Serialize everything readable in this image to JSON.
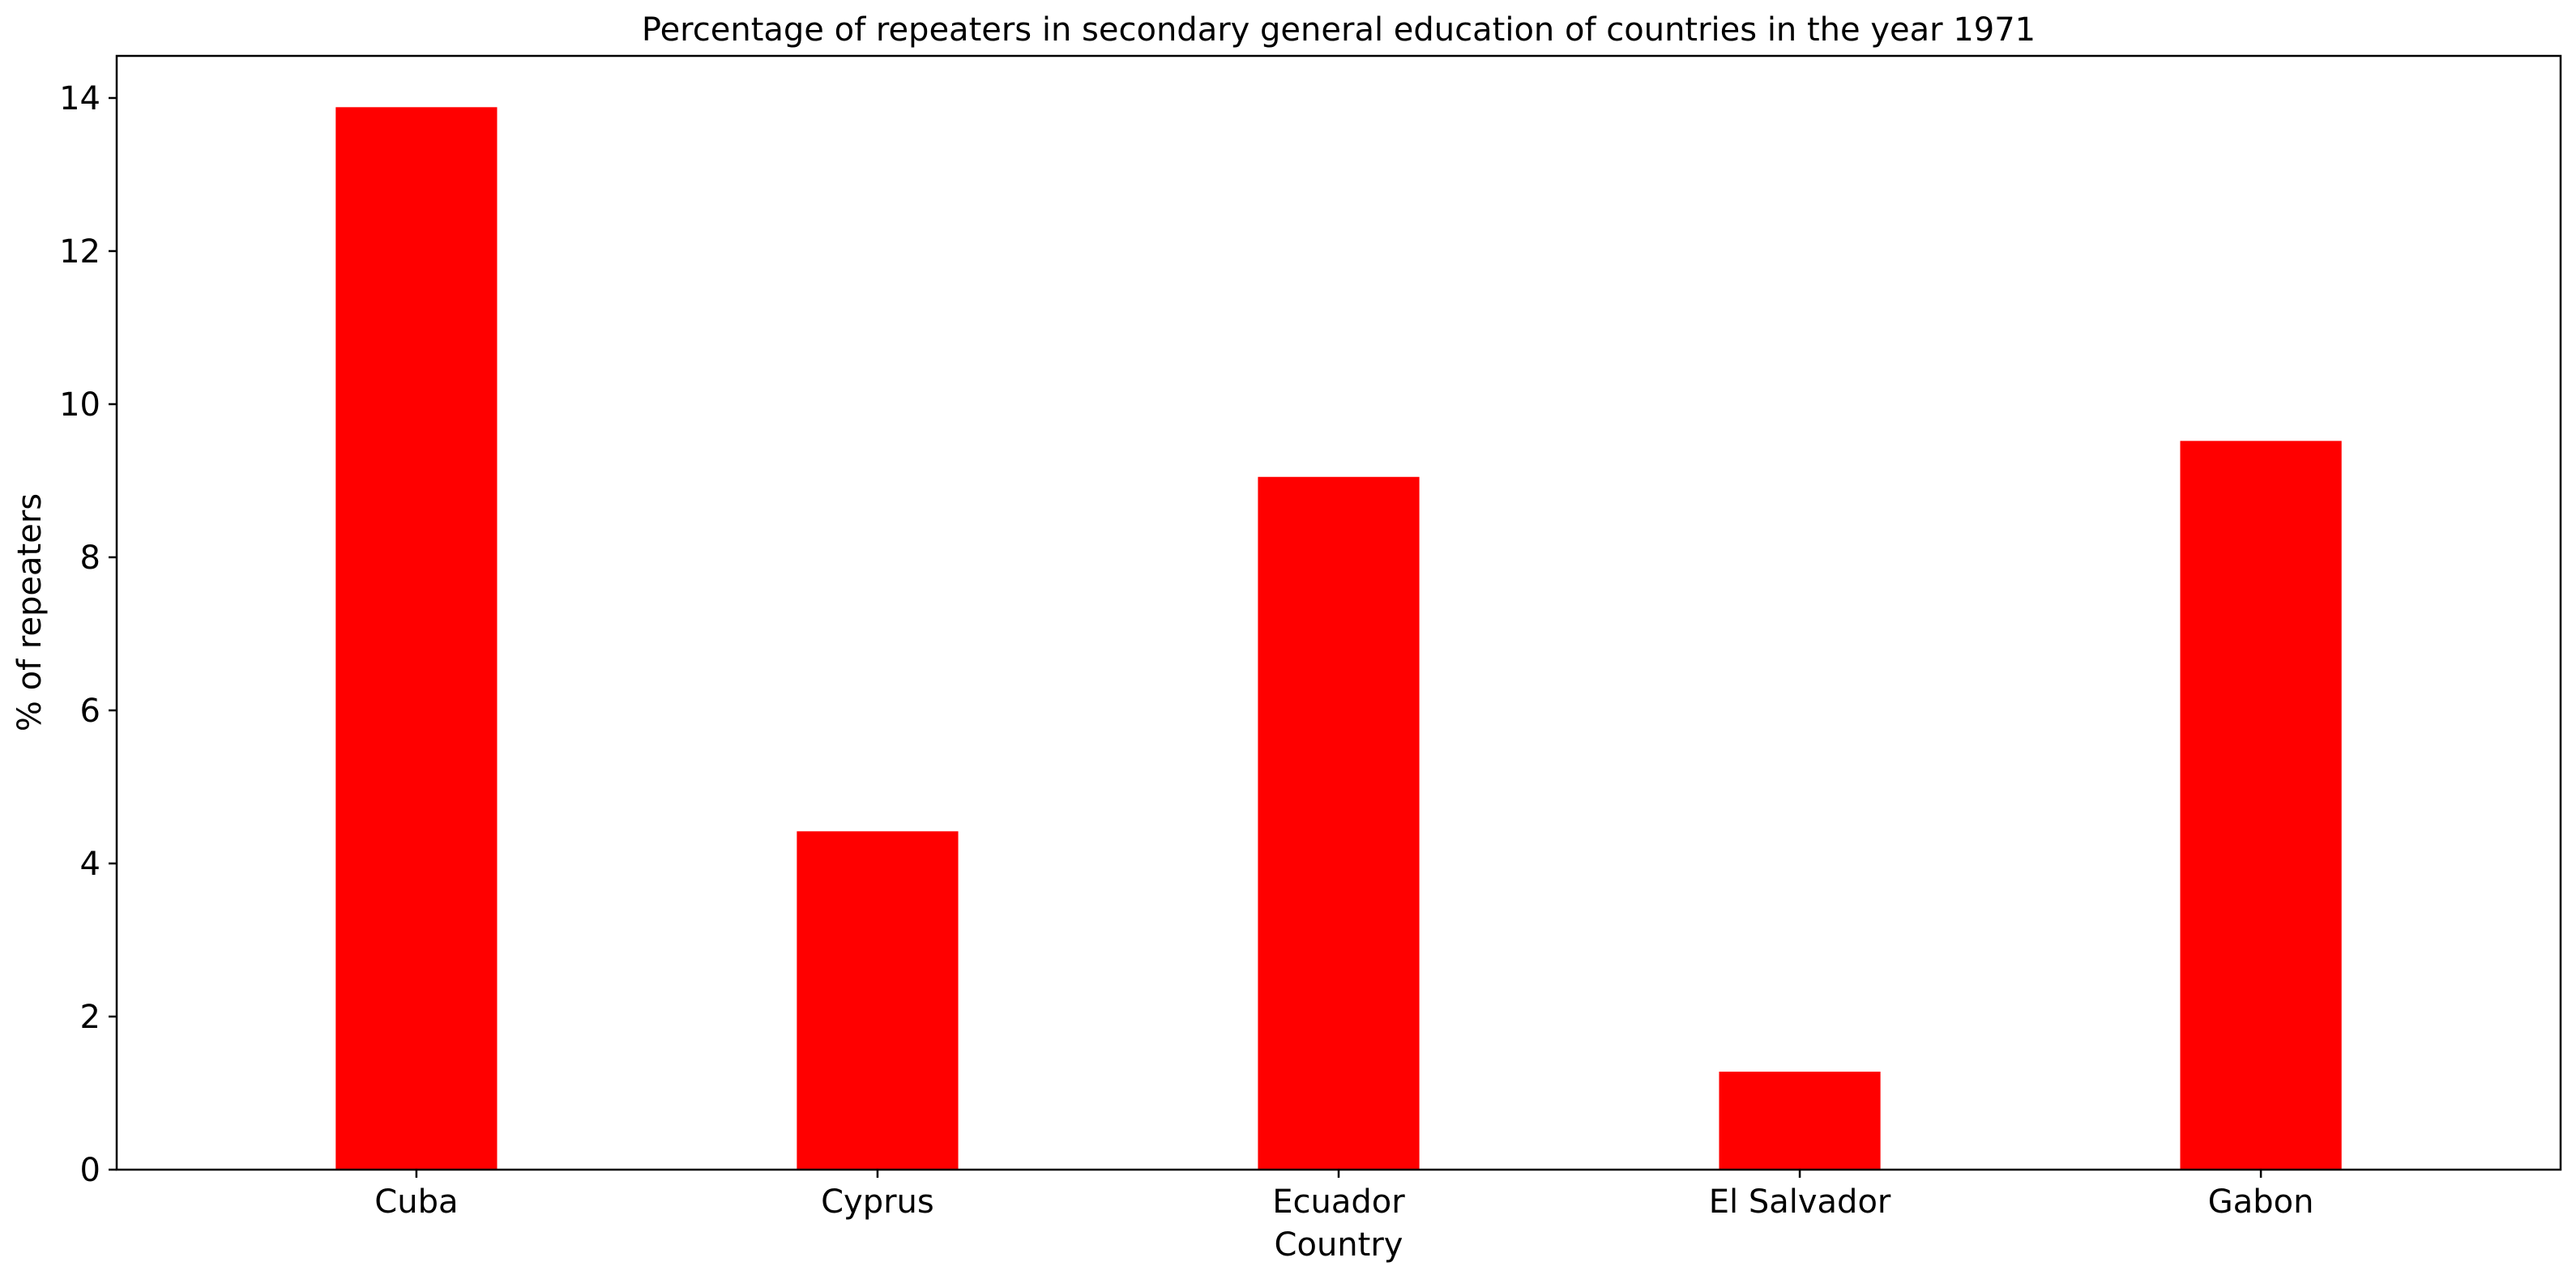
{
  "chart_data": {
    "type": "bar",
    "title": "Percentage of repeaters in secondary general education of countries in the year 1971",
    "xlabel": "Country",
    "ylabel": "% of repeaters",
    "categories": [
      "Cuba",
      "Cyprus",
      "Ecuador",
      "El Salvador",
      "Gabon"
    ],
    "values": [
      13.88,
      4.42,
      9.05,
      1.28,
      9.52
    ],
    "ylim": [
      0,
      14.55
    ],
    "yticks": [
      0,
      2,
      4,
      6,
      8,
      10,
      12,
      14
    ],
    "bar_color": "#ff0000",
    "grid": false,
    "legend": "none"
  }
}
